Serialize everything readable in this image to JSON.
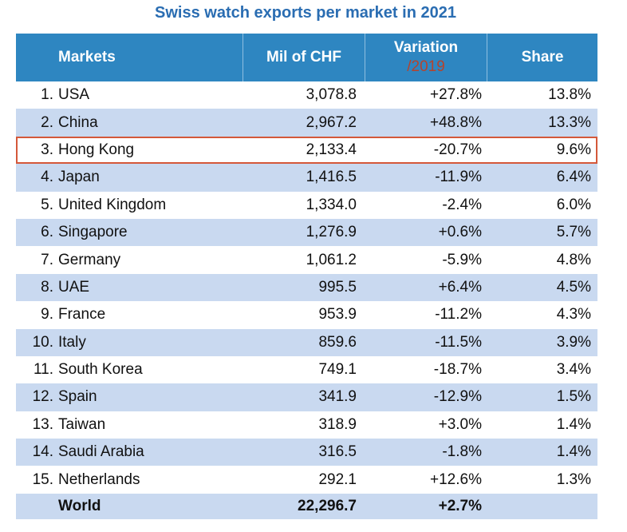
{
  "chart_data": {
    "type": "table",
    "title": "Swiss watch exports per market in 2021",
    "columns": {
      "markets": "Markets",
      "value": "Mil of CHF",
      "variation": "Variation",
      "variation_sub": "/2019",
      "share": "Share"
    },
    "highlight_color": "#d4583a",
    "rows": [
      {
        "rank": "1.",
        "market": "USA",
        "value": "3,078.8",
        "variation": "+27.8%",
        "share": "13.8%"
      },
      {
        "rank": "2.",
        "market": "China",
        "value": "2,967.2",
        "variation": "+48.8%",
        "share": "13.3%"
      },
      {
        "rank": "3.",
        "market": "Hong Kong",
        "value": "2,133.4",
        "variation": "-20.7%",
        "share": "9.6%",
        "highlighted": true
      },
      {
        "rank": "4.",
        "market": "Japan",
        "value": "1,416.5",
        "variation": "-11.9%",
        "share": "6.4%"
      },
      {
        "rank": "5.",
        "market": "United Kingdom",
        "value": "1,334.0",
        "variation": "-2.4%",
        "share": "6.0%"
      },
      {
        "rank": "6.",
        "market": "Singapore",
        "value": "1,276.9",
        "variation": "+0.6%",
        "share": "5.7%"
      },
      {
        "rank": "7.",
        "market": "Germany",
        "value": "1,061.2",
        "variation": "-5.9%",
        "share": "4.8%"
      },
      {
        "rank": "8.",
        "market": "UAE",
        "value": "995.5",
        "variation": "+6.4%",
        "share": "4.5%"
      },
      {
        "rank": "9.",
        "market": "France",
        "value": "953.9",
        "variation": "-11.2%",
        "share": "4.3%"
      },
      {
        "rank": "10.",
        "market": "Italy",
        "value": "859.6",
        "variation": "-11.5%",
        "share": "3.9%"
      },
      {
        "rank": "11.",
        "market": "South Korea",
        "value": "749.1",
        "variation": "-18.7%",
        "share": "3.4%"
      },
      {
        "rank": "12.",
        "market": "Spain",
        "value": "341.9",
        "variation": "-12.9%",
        "share": "1.5%"
      },
      {
        "rank": "13.",
        "market": "Taiwan",
        "value": "318.9",
        "variation": "+3.0%",
        "share": "1.4%"
      },
      {
        "rank": "14.",
        "market": "Saudi Arabia",
        "value": "316.5",
        "variation": "-1.8%",
        "share": "1.4%"
      },
      {
        "rank": "15.",
        "market": "Netherlands",
        "value": "292.1",
        "variation": "+12.6%",
        "share": "1.3%"
      }
    ],
    "total": {
      "market": "World",
      "value": "22,296.7",
      "variation": "+2.7%"
    }
  }
}
